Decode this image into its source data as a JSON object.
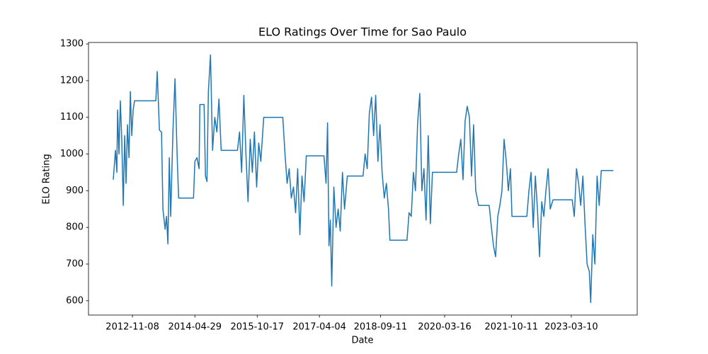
{
  "chart_data": {
    "type": "line",
    "title": "ELO Ratings Over Time for Sao Paulo",
    "x_label": "Date",
    "y_label": "ELO Rating",
    "x": [
      "2012-05-27",
      "2012-06-15",
      "2012-06-27",
      "2012-07-03",
      "2012-07-15",
      "2012-07-27",
      "2012-08-08",
      "2012-08-21",
      "2012-09-02",
      "2012-09-14",
      "2012-09-26",
      "2012-10-09",
      "2012-10-21",
      "2012-11-02",
      "2012-11-14",
      "2012-11-26",
      "2013-05-28",
      "2013-06-09",
      "2013-06-28",
      "2013-07-16",
      "2013-07-28",
      "2013-08-16",
      "2013-08-28",
      "2013-09-09",
      "2013-09-21",
      "2013-10-03",
      "2013-10-22",
      "2013-11-09",
      "2013-11-27",
      "2013-12-10",
      "2014-04-17",
      "2014-04-29",
      "2014-05-17",
      "2014-06-04",
      "2014-06-11",
      "2014-07-17",
      "2014-07-29",
      "2014-08-11",
      "2014-08-23",
      "2014-09-10",
      "2014-09-28",
      "2014-10-17",
      "2014-11-04",
      "2014-11-22",
      "2014-12-11",
      "2015-04-30",
      "2015-05-18",
      "2015-06-05",
      "2015-06-24",
      "2015-07-12",
      "2015-07-30",
      "2015-08-18",
      "2015-09-05",
      "2015-09-23",
      "2015-10-12",
      "2015-10-30",
      "2015-11-17",
      "2015-12-12",
      "2016-05-24",
      "2016-06-12",
      "2016-06-30",
      "2016-07-18",
      "2016-08-05",
      "2016-08-24",
      "2016-09-11",
      "2016-09-29",
      "2016-10-18",
      "2016-11-05",
      "2016-11-23",
      "2016-12-12",
      "2017-05-13",
      "2017-05-31",
      "2017-06-13",
      "2017-06-25",
      "2017-07-07",
      "2017-07-19",
      "2017-08-06",
      "2017-08-25",
      "2017-09-12",
      "2017-09-30",
      "2017-10-19",
      "2017-11-06",
      "2017-11-30",
      "2018-04-14",
      "2018-05-02",
      "2018-05-20",
      "2018-06-07",
      "2018-06-26",
      "2018-07-14",
      "2018-08-01",
      "2018-08-20",
      "2018-09-07",
      "2018-09-25",
      "2018-10-14",
      "2018-11-01",
      "2018-11-19",
      "2018-12-01",
      "2019-04-27",
      "2019-05-15",
      "2019-06-03",
      "2019-06-21",
      "2019-07-09",
      "2019-07-27",
      "2019-08-15",
      "2019-09-02",
      "2019-09-20",
      "2019-10-08",
      "2019-10-27",
      "2019-11-14",
      "2019-12-02",
      "2020-06-27",
      "2020-07-15",
      "2020-08-02",
      "2020-08-21",
      "2020-09-08",
      "2020-09-26",
      "2020-10-15",
      "2020-11-02",
      "2020-11-20",
      "2020-12-08",
      "2021-01-02",
      "2021-04-03",
      "2021-04-22",
      "2021-05-10",
      "2021-05-28",
      "2021-06-16",
      "2021-07-04",
      "2021-07-22",
      "2021-08-09",
      "2021-08-28",
      "2021-09-15",
      "2021-10-03",
      "2021-10-16",
      "2022-02-21",
      "2022-03-11",
      "2022-03-29",
      "2022-04-17",
      "2022-05-05",
      "2022-05-23",
      "2022-06-10",
      "2022-06-29",
      "2022-07-17",
      "2022-08-04",
      "2022-08-23",
      "2022-09-10",
      "2022-10-04",
      "2023-03-18",
      "2023-04-05",
      "2023-04-24",
      "2023-05-12",
      "2023-05-30",
      "2023-06-18",
      "2023-07-06",
      "2023-07-24",
      "2023-08-12",
      "2023-08-24",
      "2023-09-11",
      "2023-09-29",
      "2023-10-18",
      "2023-11-05",
      "2023-11-23",
      "2024-03-06"
    ],
    "series": [
      {
        "name": "Sao Paulo",
        "color": "#1f77b4",
        "values": [
          930,
          1010,
          950,
          1120,
          1000,
          1145,
          1040,
          860,
          1050,
          920,
          1080,
          990,
          1170,
          1050,
          1120,
          1145,
          1145,
          1225,
          1065,
          1060,
          850,
          795,
          830,
          755,
          990,
          830,
          1060,
          1205,
          1000,
          880,
          880,
          980,
          990,
          960,
          1135,
          1135,
          940,
          925,
          1170,
          1270,
          1010,
          1100,
          1060,
          1150,
          1010,
          1010,
          1060,
          950,
          1160,
          1000,
          870,
          1040,
          950,
          1060,
          910,
          1030,
          980,
          1100,
          1100,
          1000,
          920,
          960,
          880,
          910,
          840,
          960,
          780,
          940,
          870,
          995,
          995,
          920,
          1085,
          750,
          820,
          640,
          910,
          800,
          850,
          790,
          950,
          850,
          940,
          940,
          1000,
          960,
          1110,
          1155,
          1050,
          1160,
          980,
          1080,
          950,
          880,
          920,
          850,
          765,
          765,
          840,
          830,
          950,
          900,
          1080,
          1165,
          900,
          960,
          820,
          1050,
          810,
          950,
          950,
          1000,
          1040,
          930,
          1090,
          1130,
          1100,
          940,
          1080,
          900,
          860,
          860,
          800,
          750,
          720,
          830,
          860,
          900,
          1040,
          980,
          900,
          960,
          830,
          830,
          900,
          950,
          800,
          940,
          850,
          720,
          870,
          830,
          900,
          960,
          850,
          875,
          875,
          830,
          960,
          920,
          860,
          940,
          810,
          700,
          680,
          595,
          780,
          700,
          940,
          860,
          955,
          955
        ]
      }
    ],
    "xlim": [
      "2011-10-27",
      "2024-09-27"
    ],
    "xticks": [
      "2012-11-08",
      "2014-04-29",
      "2015-10-17",
      "2017-04-04",
      "2018-09-11",
      "2020-03-16",
      "2021-10-11",
      "2023-03-10"
    ],
    "ylim": [
      561,
      1304
    ],
    "yticks": [
      600,
      700,
      800,
      900,
      1000,
      1100,
      1200,
      1300
    ],
    "grid": false
  }
}
